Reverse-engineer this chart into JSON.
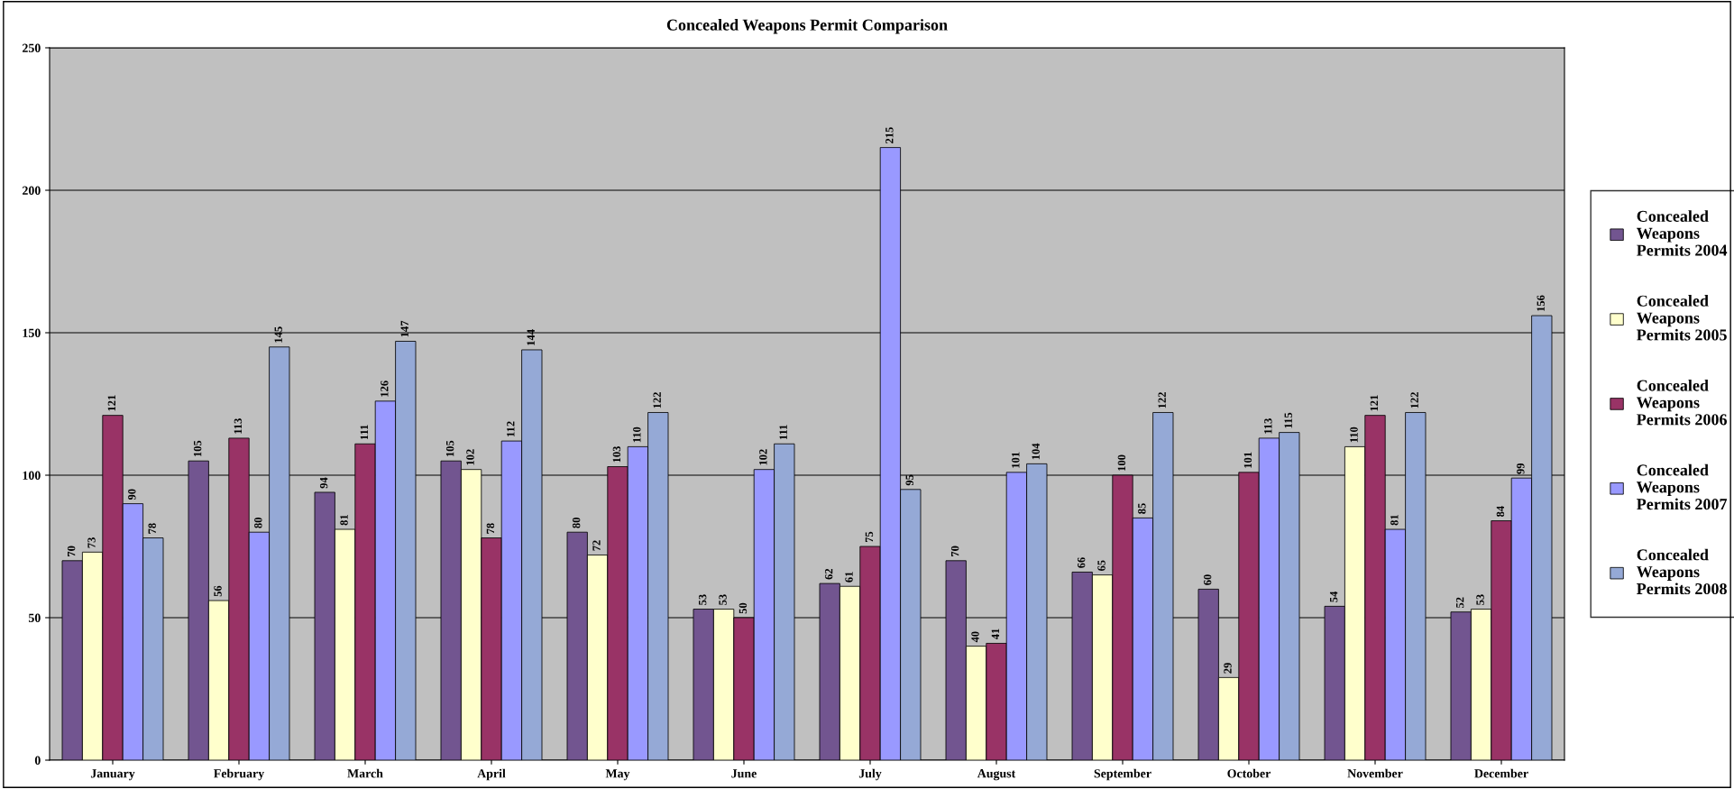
{
  "chart_data": {
    "type": "bar",
    "title": "Concealed Weapons Permit Comparison",
    "categories": [
      "January",
      "February",
      "March",
      "April",
      "May",
      "June",
      "July",
      "August",
      "September",
      "October",
      "November",
      "December"
    ],
    "series": [
      {
        "name": "Concealed Weapons Permits 2004",
        "color": "#725590",
        "values": [
          70,
          105,
          94,
          105,
          80,
          53,
          62,
          70,
          66,
          60,
          54,
          52
        ]
      },
      {
        "name": "Concealed Weapons Permits 2005",
        "color": "#ffffcc",
        "values": [
          73,
          56,
          81,
          102,
          72,
          53,
          61,
          40,
          65,
          29,
          110,
          53
        ]
      },
      {
        "name": "Concealed Weapons Permits 2006",
        "color": "#993366",
        "values": [
          121,
          113,
          111,
          78,
          103,
          50,
          75,
          41,
          100,
          101,
          121,
          84
        ]
      },
      {
        "name": "Concealed Weapons Permits 2007",
        "color": "#9999ff",
        "values": [
          90,
          80,
          126,
          112,
          110,
          102,
          215,
          101,
          85,
          113,
          81,
          99
        ]
      },
      {
        "name": "Concealed Weapons Permits 2008",
        "color": "#95a9d6",
        "values": [
          78,
          145,
          147,
          144,
          122,
          111,
          95,
          104,
          122,
          115,
          122,
          156
        ]
      }
    ],
    "ylim": [
      0,
      250
    ],
    "yticks": [
      0,
      50,
      100,
      150,
      200,
      250
    ],
    "grid": "y",
    "legend": "right",
    "data_labels": true
  }
}
